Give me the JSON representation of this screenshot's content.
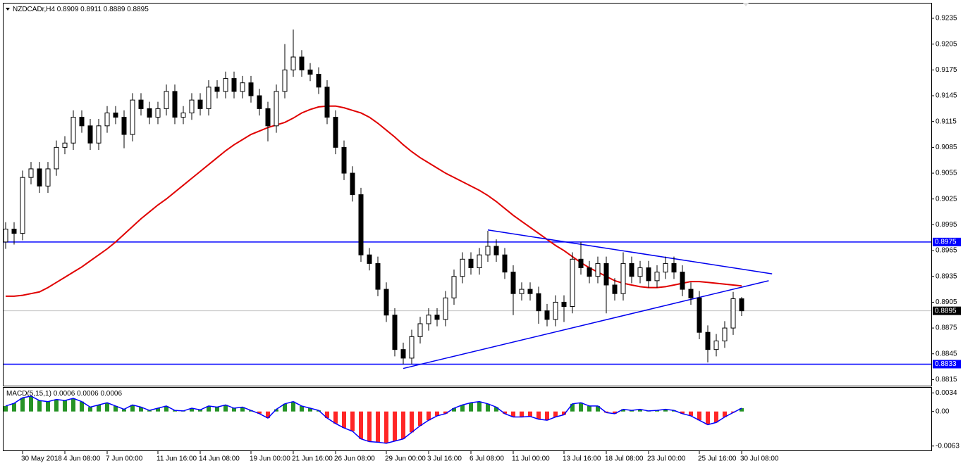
{
  "chart_data": {
    "type": "candlestick",
    "symbol": "NZDCADr,H4",
    "categories": [
      null,
      null,
      "30 May 2018",
      null,
      null,
      null,
      null,
      "4 Jun 08:00",
      null,
      null,
      null,
      null,
      "7 Jun 00:00",
      null,
      null,
      null,
      null,
      null,
      "11 Jun 16:00",
      null,
      null,
      null,
      null,
      "14 Jun 08:00",
      null,
      null,
      null,
      null,
      null,
      "19 Jun 00:00",
      null,
      null,
      null,
      null,
      "21 Jun 16:00",
      null,
      null,
      null,
      null,
      "26 Jun 08:00",
      null,
      null,
      null,
      null,
      null,
      "29 Jun 00:00",
      null,
      null,
      null,
      null,
      "3 Jul 16:00",
      null,
      null,
      null,
      null,
      "6 Jul 08:00",
      null,
      null,
      null,
      null,
      "11 Jul 00:00",
      null,
      null,
      null,
      null,
      null,
      "13 Jul 16:00",
      null,
      null,
      null,
      null,
      "18 Jul 08:00",
      null,
      null,
      null,
      null,
      "23 Jul 00:00",
      null,
      null,
      null,
      null,
      null,
      "25 Jul 16:00",
      null,
      null,
      null,
      null,
      "30 Jul 08:00"
    ],
    "open": [
      0.8975,
      0.899,
      0.8985,
      0.905,
      0.906,
      0.904,
      0.906,
      0.9085,
      0.909,
      0.912,
      0.911,
      0.909,
      0.911,
      0.9125,
      0.912,
      0.91,
      0.914,
      0.913,
      0.912,
      0.913,
      0.915,
      0.912,
      0.9125,
      0.914,
      0.913,
      0.9155,
      0.915,
      0.9165,
      0.915,
      0.916,
      0.9145,
      0.913,
      0.911,
      0.915,
      0.9175,
      0.919,
      0.9175,
      0.917,
      0.9155,
      0.912,
      0.9085,
      0.9055,
      0.903,
      0.896,
      0.895,
      0.892,
      0.889,
      0.885,
      0.884,
      0.8865,
      0.888,
      0.889,
      0.8885,
      0.891,
      0.8935,
      0.8955,
      0.8945,
      0.896,
      0.897,
      0.896,
      0.894,
      0.8915,
      0.892,
      0.8915,
      0.8895,
      0.8885,
      0.8905,
      0.89,
      0.8955,
      0.8945,
      0.8935,
      0.895,
      0.8925,
      0.8915,
      0.895,
      0.8935,
      0.8945,
      0.893,
      0.894,
      0.895,
      0.894,
      0.892,
      0.891,
      0.887,
      0.885,
      0.886,
      0.8875,
      0.8909
    ],
    "high": [
      0.8998,
      0.8998,
      0.9058,
      0.9068,
      0.9068,
      0.9068,
      0.9093,
      0.9098,
      0.9128,
      0.9128,
      0.9118,
      0.9118,
      0.9133,
      0.9133,
      0.9128,
      0.9148,
      0.9148,
      0.9138,
      0.9138,
      0.9158,
      0.9158,
      0.9133,
      0.9148,
      0.9148,
      0.9163,
      0.9163,
      0.9173,
      0.9173,
      0.9168,
      0.9168,
      0.9153,
      0.9138,
      0.9158,
      0.9205,
      0.9222,
      0.9198,
      0.9183,
      0.9178,
      0.9163,
      0.9128,
      0.9093,
      0.9063,
      0.9038,
      0.8968,
      0.8958,
      0.8928,
      0.8898,
      0.8858,
      0.8873,
      0.8888,
      0.8898,
      0.8898,
      0.8918,
      0.8943,
      0.8963,
      0.8963,
      0.8968,
      0.8988,
      0.8978,
      0.8968,
      0.8948,
      0.8928,
      0.8928,
      0.8923,
      0.8903,
      0.8913,
      0.8913,
      0.8963,
      0.8975,
      0.8953,
      0.8958,
      0.8958,
      0.8933,
      0.8963,
      0.8958,
      0.8953,
      0.8953,
      0.8948,
      0.8958,
      0.8958,
      0.8948,
      0.8928,
      0.8918,
      0.8878,
      0.8868,
      0.8883,
      0.8917,
      0.8911
    ],
    "low": [
      0.8967,
      0.8972,
      0.8977,
      0.9042,
      0.9032,
      0.9032,
      0.9052,
      0.9077,
      0.9082,
      0.9102,
      0.9082,
      0.9082,
      0.9102,
      0.9112,
      0.9084,
      0.9092,
      0.9122,
      0.9112,
      0.9112,
      0.9122,
      0.9112,
      0.9112,
      0.9117,
      0.9122,
      0.9122,
      0.9142,
      0.9142,
      0.9142,
      0.9142,
      0.9137,
      0.9122,
      0.9092,
      0.9102,
      0.9142,
      0.9167,
      0.9167,
      0.9162,
      0.9147,
      0.9112,
      0.9077,
      0.9047,
      0.9022,
      0.8952,
      0.8942,
      0.8912,
      0.8882,
      0.8842,
      0.8833,
      0.8833,
      0.8857,
      0.8872,
      0.8877,
      0.8877,
      0.8902,
      0.8927,
      0.8937,
      0.8937,
      0.8952,
      0.8952,
      0.8932,
      0.889,
      0.8907,
      0.8907,
      0.888,
      0.8877,
      0.8877,
      0.8882,
      0.8892,
      0.8937,
      0.8927,
      0.8927,
      0.8892,
      0.8907,
      0.8907,
      0.8927,
      0.8927,
      0.8922,
      0.8922,
      0.8932,
      0.8932,
      0.8912,
      0.8902,
      0.8862,
      0.8835,
      0.8842,
      0.8852,
      0.8867,
      0.8889
    ],
    "close": [
      0.899,
      0.8985,
      0.905,
      0.906,
      0.904,
      0.906,
      0.9085,
      0.909,
      0.912,
      0.911,
      0.909,
      0.911,
      0.9125,
      0.912,
      0.91,
      0.914,
      0.913,
      0.912,
      0.913,
      0.915,
      0.912,
      0.9125,
      0.914,
      0.913,
      0.9155,
      0.915,
      0.9165,
      0.915,
      0.916,
      0.9145,
      0.913,
      0.911,
      0.915,
      0.9175,
      0.919,
      0.9175,
      0.917,
      0.9155,
      0.912,
      0.9085,
      0.9055,
      0.903,
      0.896,
      0.895,
      0.892,
      0.889,
      0.885,
      0.884,
      0.8865,
      0.888,
      0.889,
      0.8885,
      0.891,
      0.8935,
      0.8955,
      0.8945,
      0.896,
      0.897,
      0.896,
      0.894,
      0.8915,
      0.892,
      0.8915,
      0.8895,
      0.8885,
      0.8905,
      0.89,
      0.8955,
      0.8945,
      0.8935,
      0.895,
      0.8925,
      0.8915,
      0.895,
      0.8935,
      0.8945,
      0.893,
      0.894,
      0.895,
      0.894,
      0.892,
      0.891,
      0.887,
      0.885,
      0.886,
      0.8875,
      0.8909,
      0.8895
    ],
    "up_color": "#ffffff",
    "down_color": "#000000",
    "ylim": [
      0.8808,
      0.9253
    ],
    "yticks": [
      0.9235,
      0.9205,
      0.9175,
      0.9145,
      0.9115,
      0.9085,
      0.9055,
      0.9025,
      0.8995,
      0.8965,
      0.8935,
      0.8905,
      0.8875,
      0.8845,
      0.8815
    ],
    "levels": [
      0.8975,
      0.8833
    ],
    "level_color": "#0000ff",
    "last_price_color": "#c0c0c0",
    "ma": {
      "color": "#e00000",
      "values": [
        0.8912,
        0.8912,
        0.8913,
        0.8915,
        0.8917,
        0.8922,
        0.8928,
        0.8934,
        0.894,
        0.8946,
        0.8953,
        0.896,
        0.8967,
        0.8975,
        0.8984,
        0.8993,
        0.9002,
        0.901,
        0.9018,
        0.9025,
        0.9033,
        0.9041,
        0.9049,
        0.9057,
        0.9065,
        0.9073,
        0.9081,
        0.9088,
        0.9094,
        0.91,
        0.9104,
        0.9108,
        0.9111,
        0.9114,
        0.9119,
        0.9125,
        0.9129,
        0.9132,
        0.9133,
        0.9133,
        0.9131,
        0.9128,
        0.9125,
        0.912,
        0.9113,
        0.9105,
        0.9097,
        0.9088,
        0.908,
        0.9073,
        0.9067,
        0.9061,
        0.9055,
        0.905,
        0.9045,
        0.904,
        0.9035,
        0.9029,
        0.9022,
        0.9014,
        0.9006,
        0.8999,
        0.8992,
        0.8985,
        0.8978,
        0.8971,
        0.8965,
        0.8958,
        0.8951,
        0.8945,
        0.894,
        0.8935,
        0.893,
        0.8927,
        0.8925,
        0.8923,
        0.8922,
        0.8922,
        0.8923,
        0.8925,
        0.8927,
        0.8929,
        0.8929,
        0.8928,
        0.8927,
        0.8926,
        0.8925,
        0.8924
      ]
    },
    "trendline_color": "#0000ee",
    "trendlines": [
      {
        "x": [
          57,
          90.6
        ],
        "y": [
          0.8989,
          0.8938
        ]
      },
      {
        "x": [
          47,
          90.2
        ],
        "y": [
          0.8828,
          0.893
        ]
      }
    ],
    "macd": {
      "name": "MACD(5,15,1)",
      "values": [
        0.001,
        0.0015,
        0.0025,
        0.0028,
        0.002,
        0.0018,
        0.0022,
        0.002,
        0.0024,
        0.0018,
        0.0008,
        0.0012,
        0.0016,
        0.001,
        0.0004,
        0.0012,
        0.0008,
        0.0002,
        0.0006,
        0.001,
        0.0002,
        0.0001,
        0.0006,
        0.0003,
        0.001,
        0.0008,
        0.0012,
        0.0006,
        0.0008,
        0.0002,
        -0.0004,
        -0.0012,
        0.0004,
        0.0014,
        0.0018,
        0.001,
        0.0006,
        0.0002,
        -0.0012,
        -0.0022,
        -0.003,
        -0.0036,
        -0.005,
        -0.0055,
        -0.0056,
        -0.0058,
        -0.0054,
        -0.005,
        -0.0038,
        -0.0026,
        -0.0016,
        -0.0008,
        -0.0004,
        0.0006,
        0.0012,
        0.0016,
        0.0018,
        0.0014,
        0.0008,
        -0.0004,
        -0.001,
        -0.001,
        -0.0009,
        -0.0014,
        -0.0016,
        -0.001,
        -0.0006,
        0.0014,
        0.0016,
        0.001,
        0.001,
        -0.0002,
        -0.0004,
        0.0004,
        0.0002,
        0.0004,
        0.0001,
        0.0002,
        0.0004,
        0.0002,
        -0.0004,
        -0.0008,
        -0.0016,
        -0.0024,
        -0.002,
        -0.001,
        -0.0002,
        0.0006
      ],
      "ylim": [
        -0.0071,
        0.0042
      ],
      "yticks": [
        0.0034,
        {
          "value": 0,
          "label": "0.00"
        },
        -0.0063
      ],
      "up_color": "#008000",
      "down_color": "#ff0000",
      "line_color": "#0000ff"
    }
  }
}
